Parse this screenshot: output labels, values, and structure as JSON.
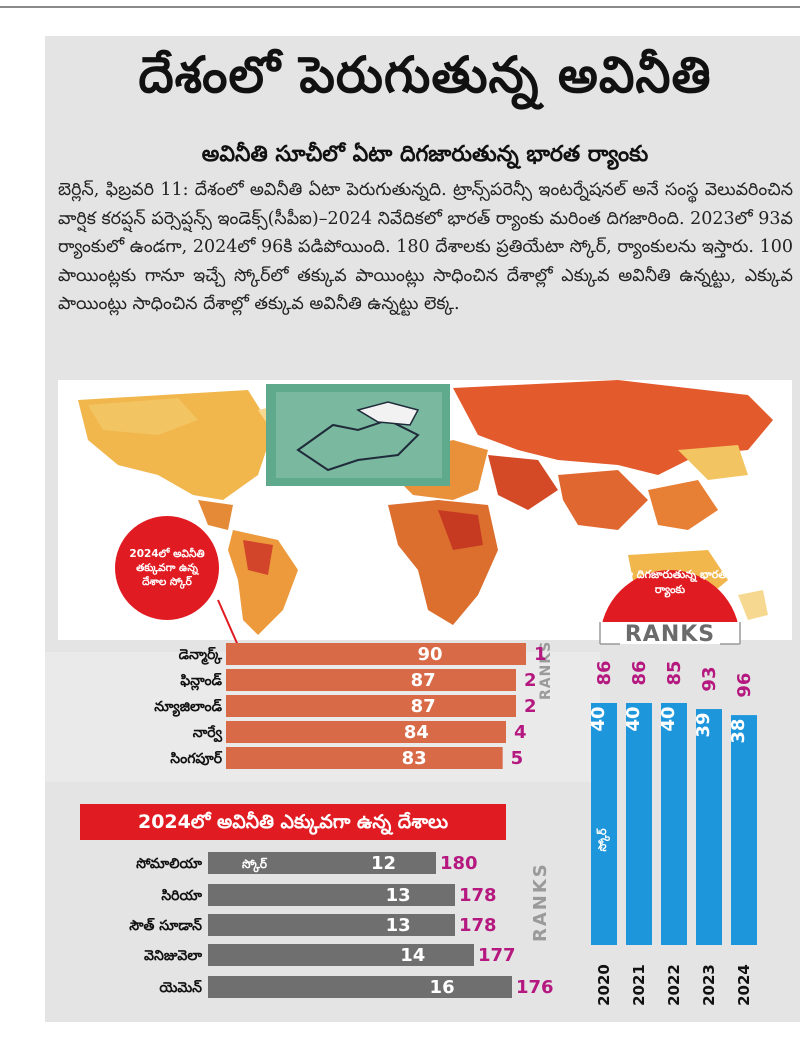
{
  "headline": "దేశంలో పెరుగుతున్న అవినీతి",
  "subheadline": "అవినీతి సూచీలో ఏటా దిగజారుతున్న భారత ర్యాంకు",
  "body_text": "బెర్లిన్, ఫిబ్రవరి 11: దేశంలో అవినీతి ఏటా పెరుగుతున్నది. ట్రాన్స్‌పరెన్సీ ఇంటర్నేషనల్ అనే సంస్థ వెలువరించిన వార్షిక కరప్షన్ పర్సెప్షన్స్ ఇండెక్స్(సీపీఐ)–2024 నివేదికలో భారత్ ర్యాంకు మరింత దిగజారింది. 2023లో 93వ ర్యాంకులో ఉండగా, 2024లో 96కి పడిపోయింది. 180 దేశాలకు ప్రతియేటా స్కోర్, ర్యాంకులను ఇస్తారు. 100 పాయింట్లకు గానూ ఇచ్చే స్కోర్‌లో తక్కువ పాయింట్లు సాధించిన దేశాల్లో ఎక్కువ అవినీతి ఉన్నట్టు, ఎక్కువ పాయింట్లు సాధించిన దేశాల్లో తక్కువ అవినీతి ఉన్నట్టు లెక్క.",
  "colors": {
    "red": "#e11b22",
    "orange": "#d86a47",
    "gray": "#6f6f6f",
    "blue": "#1e96dc",
    "magenta": "#b5187f",
    "panel": "#e4e4e4"
  },
  "least_corrupt_badge": "2024లో అవినీతి తక్కువగా ఉన్న దేశాల స్కోర్",
  "india_badge": "ఏటా దిగజారుతున్న భారత ర్యాంకు",
  "ranks_word": "RANKS",
  "most_corrupt_title": "2024లో అవినీతి ఎక్కువగా ఉన్న దేశాలు",
  "score_word": "స్కోర్",
  "chart_data": [
    {
      "type": "bar",
      "title": "2024లో అవినీతి తక్కువగా ఉన్న దేశాల స్కోర్",
      "categories": [
        "డెన్మార్క్",
        "ఫిన్లాండ్",
        "న్యూజిలాండ్",
        "నార్వే",
        "సింగపూర్"
      ],
      "series": [
        {
          "values": [
            90,
            87,
            87,
            84,
            83
          ]
        }
      ],
      "ranks": [
        1,
        2,
        2,
        4,
        5
      ],
      "orientation": "horizontal"
    },
    {
      "type": "bar",
      "title": "2024లో అవినీతి ఎక్కువగా ఉన్న దేశాలు",
      "categories": [
        "సోమాలియా",
        "సిరియా",
        "సౌత్ సూడాన్",
        "వెనిజువెలా",
        "యెమెన్"
      ],
      "series": [
        {
          "values": [
            12,
            13,
            13,
            14,
            16
          ]
        }
      ],
      "ranks": [
        180,
        178,
        178,
        177,
        176
      ],
      "orientation": "horizontal"
    },
    {
      "type": "bar",
      "title": "ఏటా దిగజారుతున్న భారత ర్యాంకు",
      "categories": [
        "2020",
        "2021",
        "2022",
        "2023",
        "2024"
      ],
      "series": [
        {
          "values": [
            40,
            40,
            40,
            39,
            38
          ]
        }
      ],
      "ranks": [
        86,
        86,
        85,
        93,
        96
      ],
      "orientation": "vertical"
    }
  ]
}
